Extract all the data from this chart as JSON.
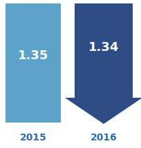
{
  "bg_color": "#ffffff",
  "bar_2015_color": "#5ba3c9",
  "arrow_2016_color": "#2e4d87",
  "value_2015": "1.35",
  "value_2016": "1.34",
  "label_2015": "2015",
  "label_2016": "2016",
  "label_color": "#2e6fad",
  "value_text_color": "#ffffff",
  "fig_width": 2.04,
  "fig_height": 2.15,
  "dpi": 100
}
